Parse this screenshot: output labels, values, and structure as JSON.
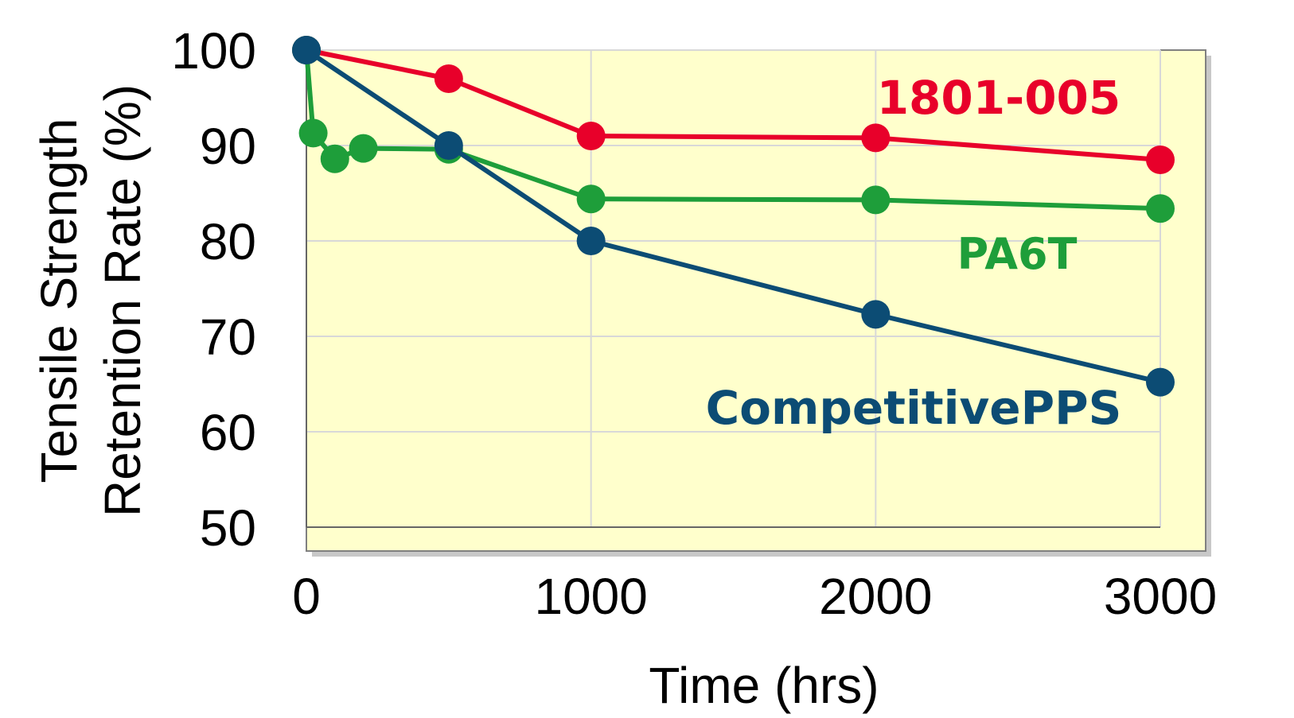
{
  "chart_data": {
    "type": "line",
    "title": "",
    "xlabel": "Time (hrs)",
    "ylabel_lines": [
      "Tensile Strength",
      "Retention Rate (%)"
    ],
    "xlim": [
      0,
      3000
    ],
    "ylim": [
      50,
      100
    ],
    "x_ticks": [
      "0",
      "1000",
      "2000",
      "3000"
    ],
    "y_ticks": [
      "50",
      "60",
      "70",
      "80",
      "90",
      "100"
    ],
    "grid": true,
    "plot_background": "#ffffcc",
    "series": [
      {
        "name": "1801-005",
        "color": "#e8002a",
        "x": [
          0,
          500,
          1000,
          2000,
          3000
        ],
        "y": [
          100,
          97,
          91,
          90.8,
          88.5
        ]
      },
      {
        "name": "PA6T",
        "color": "#1e9e3a",
        "x": [
          0,
          24,
          100,
          200,
          500,
          1000,
          2000,
          3000
        ],
        "y": [
          100,
          91.3,
          88.6,
          89.7,
          89.6,
          84.4,
          84.3,
          83.4
        ]
      },
      {
        "name": "CompetitivePPS",
        "color": "#0c4c74",
        "x": [
          0,
          500,
          1000,
          2000,
          3000
        ],
        "y": [
          100,
          90,
          80,
          72.3,
          65.2
        ]
      }
    ]
  }
}
